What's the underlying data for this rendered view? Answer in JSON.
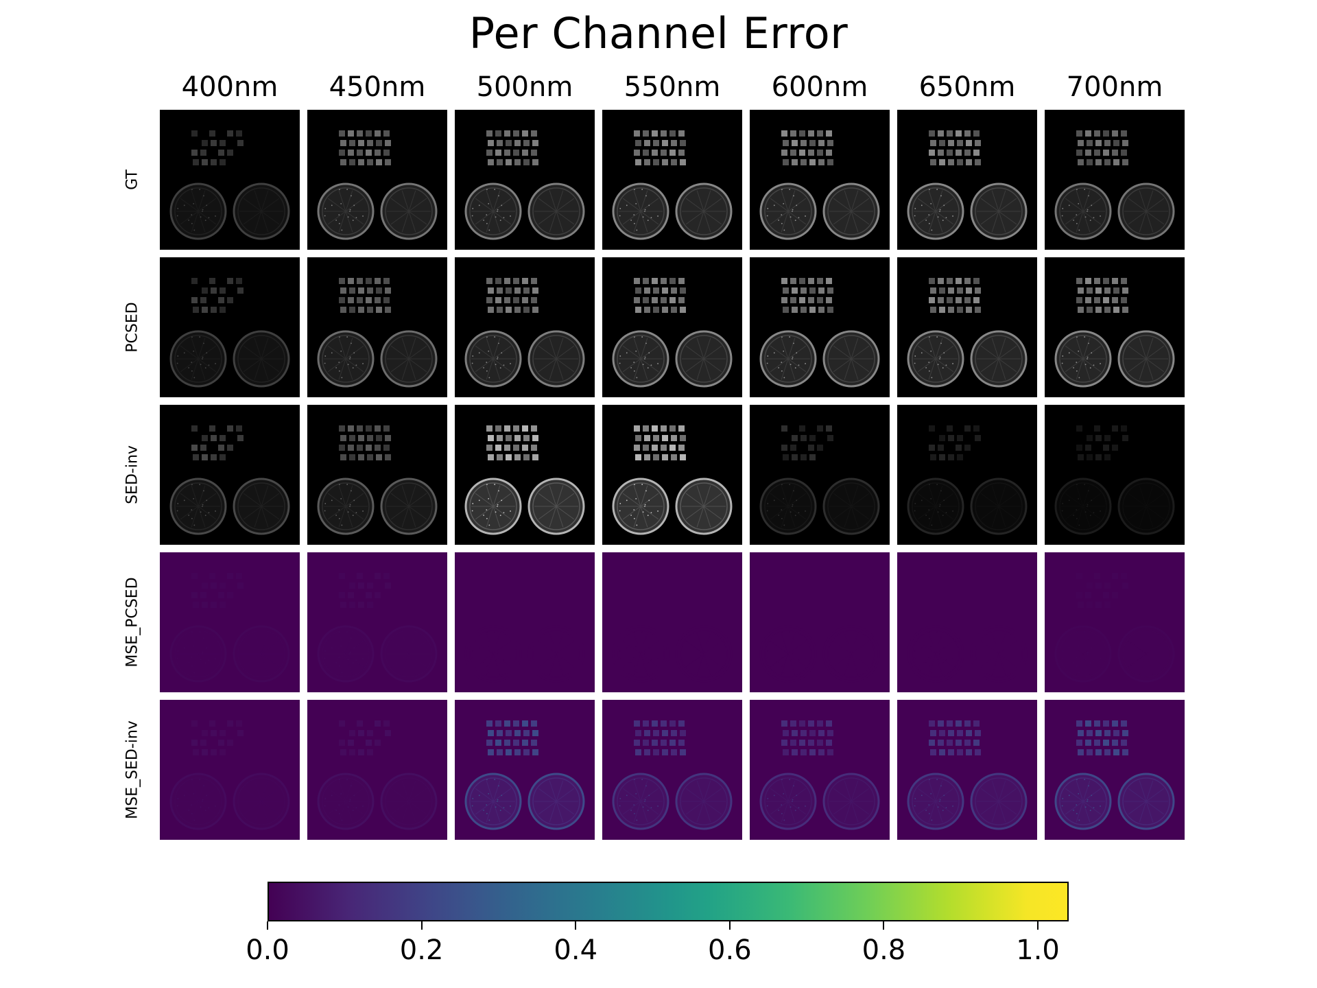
{
  "chart_data": {
    "type": "heatmap",
    "title": "Per Channel Error",
    "columns": [
      "400nm",
      "450nm",
      "500nm",
      "550nm",
      "600nm",
      "650nm",
      "700nm"
    ],
    "rows": [
      {
        "label": "GT",
        "kind": "gray",
        "brightness": [
          0.35,
          0.65,
          0.7,
          0.75,
          0.75,
          0.75,
          0.65
        ]
      },
      {
        "label": "PCSED",
        "kind": "gray",
        "brightness": [
          0.35,
          0.6,
          0.7,
          0.75,
          0.75,
          0.75,
          0.75
        ]
      },
      {
        "label": "SED-inv",
        "kind": "gray",
        "brightness": [
          0.4,
          0.5,
          1.0,
          1.0,
          0.25,
          0.2,
          0.15
        ]
      },
      {
        "label": "MSE_PCSED",
        "kind": "error",
        "error": [
          0.015,
          0.02,
          0.0,
          0.0,
          0.0,
          0.0,
          0.01
        ]
      },
      {
        "label": "MSE_SED-inv",
        "kind": "error",
        "error": [
          0.03,
          0.04,
          0.25,
          0.17,
          0.14,
          0.18,
          0.24
        ]
      }
    ],
    "colorbar": {
      "colormap": "viridis",
      "ticks": [
        "0.0",
        "0.2",
        "0.4",
        "0.6",
        "0.8",
        "1.0"
      ],
      "range": [
        0,
        1.04
      ]
    },
    "colors": {
      "viridis": [
        "#440154",
        "#482878",
        "#3e4989",
        "#31688e",
        "#26828e",
        "#1f9e89",
        "#35b779",
        "#6ece58",
        "#b5de2b",
        "#fde725"
      ]
    }
  }
}
